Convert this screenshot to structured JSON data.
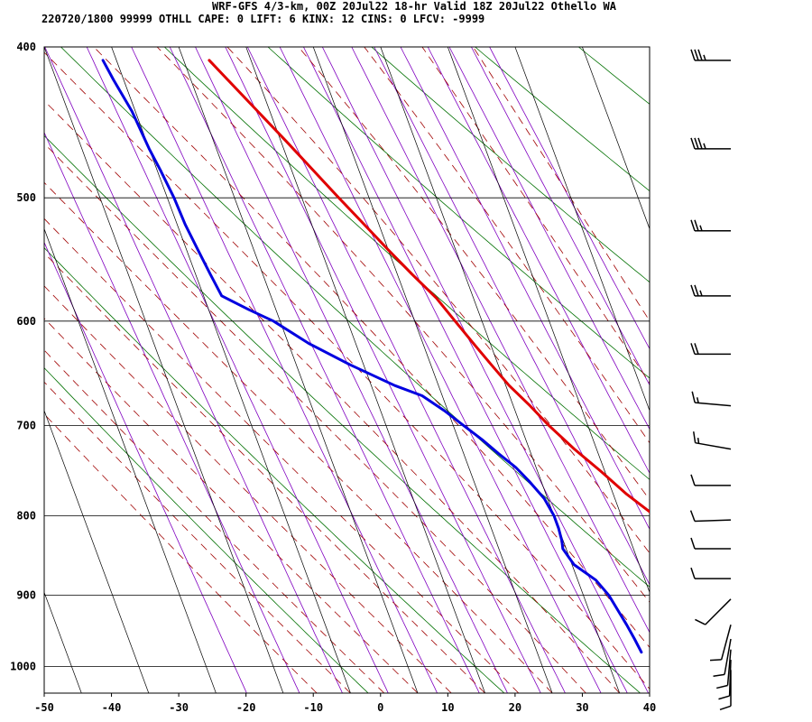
{
  "header": {
    "line1": "WRF-GFS 4/3-km, 00Z 20Jul22 18-hr Valid 18Z 20Jul22 Othello WA",
    "line2": "220720/1800 99999  OTHLL   CAPE:      0 LIFT:     6 KINX:    12 CINS:      0 LFCV: -9999"
  },
  "colors": {
    "temperature": "#e00000",
    "dewpoint": "#0000e0",
    "isotherm": "#000000",
    "dry_adiabat": "#007000",
    "moist_adiabat": "#a00000",
    "mixing_ratio": "#8000c0",
    "wind_barb": "#000000"
  },
  "chart_data": {
    "type": "line",
    "subtype": "skew-t log-p sounding",
    "xlabel": "",
    "ylabel": "",
    "xlim": [
      -50,
      40
    ],
    "ylim": [
      1040,
      400
    ],
    "y_scale": "log",
    "grid": true,
    "x_ticks": [
      -50,
      -40,
      -30,
      -20,
      -10,
      0,
      10,
      20,
      30,
      40
    ],
    "y_ticks": [
      400,
      500,
      600,
      700,
      800,
      900,
      1000
    ],
    "series": [
      {
        "kind": "temperature",
        "points": [
          [
            979,
            29.6
          ],
          [
            977,
            28.0
          ],
          [
            972,
            27.0
          ],
          [
            963,
            26.0
          ],
          [
            953,
            25.0
          ],
          [
            945,
            24.3
          ],
          [
            935,
            23.5
          ],
          [
            920,
            22.5
          ],
          [
            900,
            21.0
          ],
          [
            878,
            19.3
          ],
          [
            858,
            18.5
          ],
          [
            840,
            18.0
          ],
          [
            820,
            17.0
          ],
          [
            800,
            15.0
          ],
          [
            775,
            12.0
          ],
          [
            750,
            9.5
          ],
          [
            725,
            6.7
          ],
          [
            700,
            4.2
          ],
          [
            680,
            2.5
          ],
          [
            660,
            0.5
          ],
          [
            640,
            -1.0
          ],
          [
            620,
            -2.5
          ],
          [
            600,
            -4.0
          ],
          [
            580,
            -5.5
          ],
          [
            560,
            -7.8
          ],
          [
            540,
            -10.0
          ],
          [
            520,
            -12.2
          ],
          [
            500,
            -14.5
          ],
          [
            480,
            -16.8
          ],
          [
            460,
            -19.2
          ],
          [
            440,
            -21.8
          ],
          [
            420,
            -24.5
          ],
          [
            408,
            -26.2
          ]
        ]
      },
      {
        "kind": "dewpoint",
        "points": [
          [
            979,
            5.5
          ],
          [
            960,
            5.2
          ],
          [
            940,
            4.8
          ],
          [
            920,
            4.3
          ],
          [
            900,
            3.8
          ],
          [
            880,
            2.7
          ],
          [
            860,
            0.3
          ],
          [
            840,
            -0.5
          ],
          [
            830,
            -0.2
          ],
          [
            815,
            0.0
          ],
          [
            800,
            0.0
          ],
          [
            780,
            -0.5
          ],
          [
            760,
            -1.8
          ],
          [
            745,
            -3.0
          ],
          [
            730,
            -4.8
          ],
          [
            715,
            -6.5
          ],
          [
            700,
            -8.5
          ],
          [
            685,
            -10.5
          ],
          [
            670,
            -13.0
          ],
          [
            660,
            -16.5
          ],
          [
            640,
            -22.0
          ],
          [
            620,
            -27.0
          ],
          [
            600,
            -31.0
          ],
          [
            590,
            -34.0
          ],
          [
            578,
            -37.3
          ],
          [
            560,
            -37.8
          ],
          [
            540,
            -38.3
          ],
          [
            520,
            -38.8
          ],
          [
            500,
            -39.0
          ],
          [
            480,
            -39.5
          ],
          [
            465,
            -40.0
          ],
          [
            440,
            -40.5
          ],
          [
            420,
            -41.5
          ],
          [
            408,
            -42.0
          ]
        ]
      }
    ],
    "wind_barbs": [
      {
        "pressure": 408,
        "direction_deg": 270,
        "speed_kt": 35
      },
      {
        "pressure": 465,
        "direction_deg": 270,
        "speed_kt": 35
      },
      {
        "pressure": 525,
        "direction_deg": 270,
        "speed_kt": 25
      },
      {
        "pressure": 578,
        "direction_deg": 270,
        "speed_kt": 25
      },
      {
        "pressure": 630,
        "direction_deg": 270,
        "speed_kt": 20
      },
      {
        "pressure": 680,
        "direction_deg": 275,
        "speed_kt": 15
      },
      {
        "pressure": 725,
        "direction_deg": 280,
        "speed_kt": 15
      },
      {
        "pressure": 765,
        "direction_deg": 270,
        "speed_kt": 10
      },
      {
        "pressure": 805,
        "direction_deg": 268,
        "speed_kt": 10
      },
      {
        "pressure": 840,
        "direction_deg": 270,
        "speed_kt": 10
      },
      {
        "pressure": 878,
        "direction_deg": 270,
        "speed_kt": 10
      },
      {
        "pressure": 905,
        "direction_deg": 225,
        "speed_kt": 10
      },
      {
        "pressure": 940,
        "direction_deg": 195,
        "speed_kt": 10
      },
      {
        "pressure": 960,
        "direction_deg": 190,
        "speed_kt": 10
      },
      {
        "pressure": 975,
        "direction_deg": 185,
        "speed_kt": 10
      },
      {
        "pressure": 990,
        "direction_deg": 182,
        "speed_kt": 10
      },
      {
        "pressure": 1005,
        "direction_deg": 180,
        "speed_kt": 10
      }
    ]
  }
}
